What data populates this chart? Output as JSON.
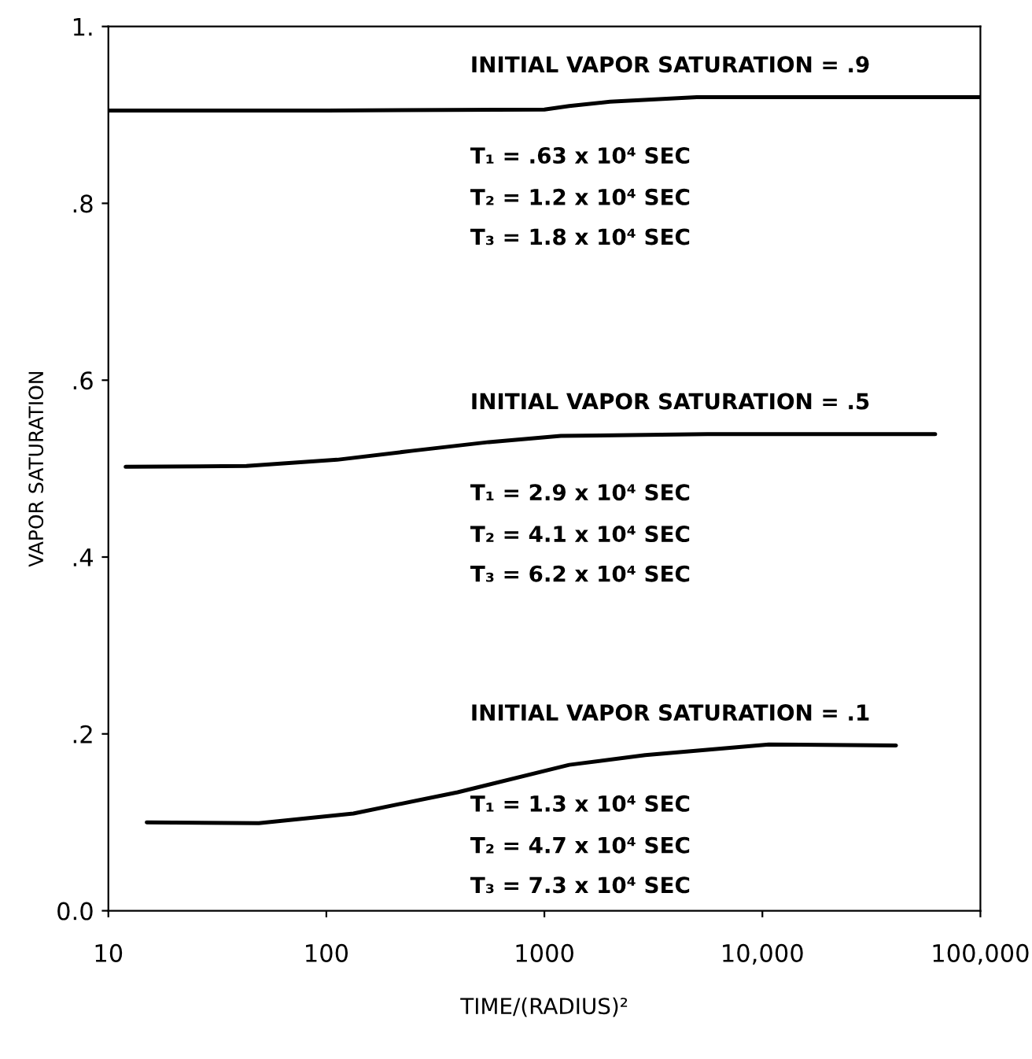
{
  "chart_data": {
    "type": "line",
    "xlabel": "TIME/(RADIUS)²",
    "ylabel": "VAPOR SATURATION",
    "log": "x",
    "grid": false,
    "marker": "none",
    "line_style": "solid",
    "xlim": [
      10,
      100000
    ],
    "xticks": [
      10,
      100,
      1000,
      {
        "value": 10000,
        "label": "10,000"
      },
      {
        "value": 100000,
        "label": "100,000"
      }
    ],
    "ylim": [
      0,
      1
    ],
    "yticks": [
      {
        "value": 0,
        "label": "0.0"
      },
      {
        "value": 0.2,
        "label": ".2"
      },
      {
        "value": 0.4,
        "label": ".4"
      },
      {
        "value": 0.6,
        "label": ".6"
      },
      {
        "value": 0.8,
        "label": ".8"
      },
      {
        "value": 1,
        "label": "1."
      }
    ],
    "series": [
      {
        "color": "#000000",
        "x": [
          10,
          100,
          1000,
          1300,
          2000,
          5000,
          100000
        ],
        "values": [
          0.905,
          0.905,
          0.906,
          0.91,
          0.915,
          0.92,
          0.92
        ]
      },
      {
        "color": "#000000",
        "x": [
          12,
          43,
          112,
          245,
          556,
          1190,
          5600,
          62000
        ],
        "values": [
          0.502,
          0.503,
          0.51,
          0.52,
          0.53,
          0.537,
          0.539,
          0.539
        ]
      },
      {
        "color": "#000000",
        "x": [
          15,
          49,
          133,
          400,
          1300,
          2900,
          10700,
          41000
        ],
        "values": [
          0.1,
          0.099,
          0.11,
          0.134,
          0.165,
          0.176,
          0.188,
          0.187
        ]
      }
    ],
    "annotations": [
      "INITIAL VAPOR SATURATION = .9",
      "T₁ = .63 x 10⁴ SEC",
      "T₂ = 1.2 x 10⁴ SEC",
      "T₃ = 1.8 x 10⁴ SEC",
      "INITIAL VAPOR SATURATION = .5",
      "T₁ = 2.9 x 10⁴ SEC",
      "T₂ = 4.1 x 10⁴ SEC",
      "T₃ = 6.2 x 10⁴ SEC",
      "INITIAL VAPOR SATURATION = .1",
      "T₁ = 1.3 x 10⁴ SEC",
      "T₂ = 4.7 x 10⁴ SEC",
      "T₃ = 7.3 x 10⁴ SEC"
    ]
  }
}
